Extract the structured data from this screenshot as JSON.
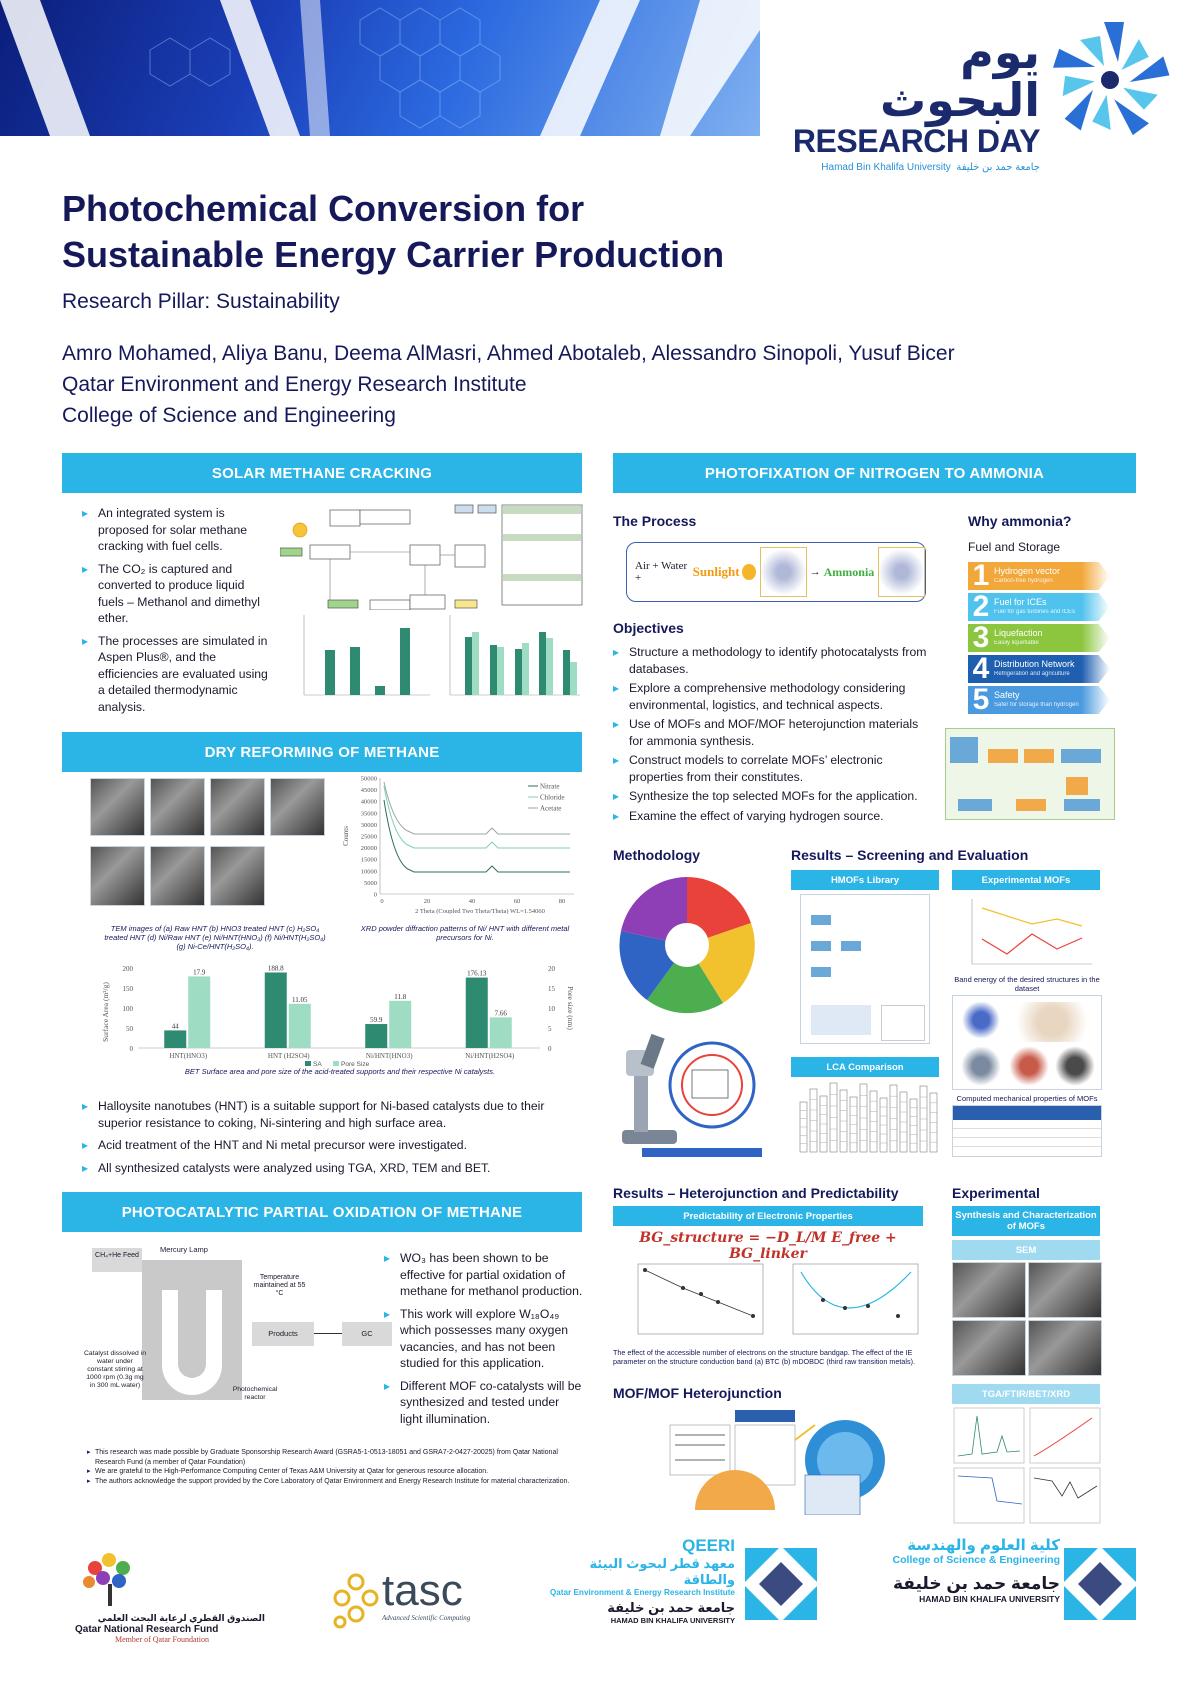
{
  "header": {
    "logo_arabic": "يوم البحوث",
    "logo_english": "RESEARCH DAY",
    "logo_sub_en": "Hamad Bin Khalifa University",
    "logo_sub_ar": "جامعة حمد بن خليفة"
  },
  "title_line1": "Photochemical Conversion for",
  "title_line2": "Sustainable Energy Carrier Production",
  "pillar": "Research Pillar: Sustainability",
  "authors": "Amro Mohamed, Aliya Banu, Deema AlMasri, Ahmed Abotaleb, Alessandro Sinopoli, Yusuf Bicer",
  "affiliation1": "Qatar Environment and Energy Research Institute",
  "affiliation2": "College of Science and Engineering",
  "solar": {
    "heading": "SOLAR METHANE CRACKING",
    "b1": "An integrated system is proposed for solar methane cracking with fuel cells.",
    "b2": "The CO₂ is captured and converted to produce liquid fuels – Methanol and dimethyl ether.",
    "b3": "The processes are simulated in Aspen Plus®, and the efficiencies are evaluated using a detailed thermodynamic analysis."
  },
  "dry": {
    "heading": "DRY REFORMING OF METHANE",
    "tem_caption": "TEM images of (a) Raw HNT (b) HNO3 treated HNT (c) H₂SO₄ treated HNT (d) Ni/Raw HNT (e) Ni/HNT(HNO₃) (f) Ni/HNT(H₂SO₄) (g) Ni-Ce/HNT(H₂SO₄).",
    "xrd_caption": "XRD powder diffraction patterns of Ni/ HNT with different metal precursors for Ni.",
    "bet_caption": "BET Surface area and pore size of the acid-treated supports and their respective Ni catalysts.",
    "b1": "Halloysite nanotubes (HNT) is a suitable support for Ni-based catalysts due to their superior resistance to coking, Ni-sintering and high surface area.",
    "b2": "Acid treatment of the HNT and  Ni metal precursor  were investigated.",
    "b3": "All synthesized catalysts were analyzed using TGA, XRD, TEM and BET."
  },
  "chart_data": {
    "type": "bar",
    "categories": [
      "HNT(HNO3)",
      "HNT (H2SO4)",
      "Ni/HNT(HNO3)",
      "Ni/HNT(H2SO4)"
    ],
    "series": [
      {
        "name": "SA",
        "values": [
          44,
          188.8,
          59.9,
          176.13
        ],
        "color": "#2f8a72"
      },
      {
        "name": "Pore Size",
        "values": [
          17.9,
          11.05,
          11.8,
          7.66
        ],
        "color": "#9fdcc4"
      }
    ],
    "value_labels": [
      "44",
      "17.9",
      "188.8",
      "11.05",
      "59.9",
      "11.8",
      "176.13",
      "7.66"
    ],
    "ylabel": "Surface Area (m²/g)",
    "y2label": "Pore size (nm)",
    "ylim": [
      0,
      200
    ],
    "y2lim": [
      0,
      20
    ],
    "yticks": [
      "200",
      "150",
      "100",
      "50",
      "0"
    ],
    "y2ticks": [
      "20",
      "15",
      "10",
      "5",
      "0"
    ]
  },
  "xrd_chart": {
    "legend": [
      "Nitrate",
      "Chloride",
      "Acetate"
    ],
    "xlabel": "2 Theta (Coupled Two Theta/Theta) WL=1.54060",
    "ylabel": "Counts",
    "yticks": [
      "50000",
      "45000",
      "40000",
      "35000",
      "30000",
      "25000",
      "20000",
      "15000",
      "10000",
      "5000",
      "0"
    ],
    "xticks": [
      "0",
      "20",
      "40",
      "60",
      "80"
    ]
  },
  "pom": {
    "heading": "PHOTOCATALYTIC PARTIAL OXIDATION OF METHANE",
    "b1": "WO₃ has been shown to be effective for partial oxidation of methane for methanol production.",
    "b2": "This work will explore W₁₈O₄₉ which possesses many oxygen vacancies, and has not been studied for this application.",
    "b3": "Different MOF co-catalysts will be synthesized and tested under light illumination.",
    "lbl_lamp": "Mercury Lamp",
    "lbl_feed": "CH₄+He Feed",
    "lbl_temp": "Temperature maintained at 55 °C",
    "lbl_products": "Products",
    "lbl_gc": "GC",
    "lbl_catalyst": "Catalyst dissolved in water under constant stirring at 1000 rpm (0.3g mg in 300 mL water)",
    "lbl_reactor": "Photochemical reactor"
  },
  "footnotes": [
    "This research was made possible by Graduate Sponsorship Research Award (GSRA5-1-0513-18051 and GSRA7-2-0427-20025) from Qatar National Research Fund (a member of Qatar Foundation)",
    "We are grateful to the High-Performance Computing Center of Texas A&M University at Qatar for generous resource allocation.",
    "The authors acknowledge the support provided by the Core Laboratory of Qatar Environment and Energy Research Institute for material characterization."
  ],
  "nitro": {
    "heading": "PHOTOFIXATION OF NITROGEN TO AMMONIA",
    "process_h": "The Process",
    "process_air": "Air + Water +",
    "process_sun": "Sunlight",
    "process_nh3": "Ammonia",
    "why_h": "Why ammonia?",
    "fuel_storage": "Fuel and Storage",
    "reasons": [
      {
        "num": "1",
        "label": "Hydrogen vector",
        "sub": "Carbon-free hydrogen"
      },
      {
        "num": "2",
        "label": "Fuel for ICEs",
        "sub": "Fuel for gas turbines and ICEs"
      },
      {
        "num": "3",
        "label": "Liquefaction",
        "sub": "Easily liquefiable"
      },
      {
        "num": "4",
        "label": "Distribution Network",
        "sub": "Refrigeration and agriculture"
      },
      {
        "num": "5",
        "label": "Safety",
        "sub": "Safer for storage than hydrogen"
      }
    ],
    "objectives_h": "Objectives",
    "objectives": [
      "Structure a methodology to identify photocatalysts from databases.",
      "Explore a comprehensive methodology considering environmental, logistics, and technical aspects.",
      "Use of MOFs and MOF/MOF heterojunction materials for ammonia synthesis.",
      "Construct models to correlate MOFs’ electronic properties from their constitutes.",
      "Synthesize the top selected MOFs for the application.",
      "Examine the effect of varying hydrogen source."
    ],
    "methodology_h": "Methodology",
    "results1_h": "Results – Screening and Evaluation",
    "hmofs": "HMOFs Library",
    "exp_mofs": "Experimental MOFs",
    "band_caption": "Band energy of the desired structures in the dataset",
    "lca": "LCA Comparison",
    "mech_caption": "Computed mechanical properties of MOFs",
    "results2_h": "Results – Heterojunction and Predictability",
    "predict": "Predictability of Electronic Properties",
    "formula": "BG_structure = −D_L/M E_free + BG_linker",
    "effect_caption": "The effect of the accessible number of electrons on the structure bandgap. The effect of the IE parameter on the structure conduction band (a) BTC (b) mDOBDC (third raw transition metals).",
    "hetero_h": "MOF/MOF Heterojunction",
    "experimental_h": "Experimental",
    "synthesis": "Synthesis and Characterization of MOFs",
    "sem": "SEM",
    "tga": "TGA/FTIR/BET/XRD"
  },
  "logos": {
    "qnrf_ar": "الصندوق القطري لرعاية البحث العلمي",
    "qnrf_en": "Qatar National Research Fund",
    "qnrf_sub": "Member of Qatar Foundation",
    "tasc": "tasc",
    "tasc_sub": "Advanced Scientific Computing",
    "qeeri": "QEERI",
    "qeeri_ar": "معهد قطر لبحوث البيئة والطاقة",
    "qeeri_en": "Qatar Environment & Energy Research Institute",
    "hbku_ar": "جامعة حمد بن خليفة",
    "hbku_en": "HAMAD BIN KHALIFA UNIVERSITY",
    "cse_ar": "كلية العلوم والهندسة",
    "cse_en": "College of Science & Engineering"
  }
}
